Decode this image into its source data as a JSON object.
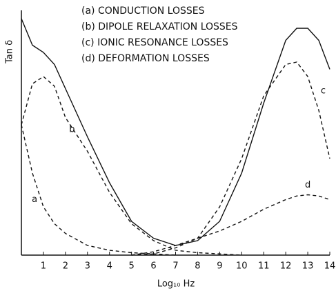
{
  "chart_data": {
    "type": "line",
    "x_label": "Log₁₀ Hz",
    "y_label": "Tan δ",
    "x": [
      0,
      0.5,
      1,
      1.5,
      2,
      3,
      4,
      5,
      6,
      7,
      8,
      9,
      10,
      11,
      12,
      12.5,
      13,
      13.5,
      14
    ],
    "series": [
      {
        "color": "#111111",
        "dash": false,
        "values": [
          98,
          87,
          84,
          79,
          69,
          49,
          30,
          14,
          7,
          4,
          6,
          14,
          34,
          63,
          89,
          94,
          94,
          89,
          77
        ]
      },
      {
        "name": "(a) CONDUCTION LOSSES",
        "label": "a",
        "color": "#111111",
        "dash": true,
        "values": [
          54,
          34,
          20,
          13,
          9,
          4,
          2,
          1,
          0.5,
          0,
          null,
          null,
          null,
          null,
          null,
          null,
          null,
          null,
          null
        ]
      },
      {
        "name": "(b) DIPOLE RELAXATION LOSSES",
        "label": "b",
        "color": "#111111",
        "dash": true,
        "values": [
          54,
          71,
          74,
          70,
          57,
          43,
          26,
          13,
          6,
          2,
          1,
          0.5,
          0,
          null,
          null,
          null,
          null,
          null,
          null
        ]
      },
      {
        "name": "(c) IONIC RESONANCE LOSSES",
        "label": "c",
        "color": "#111111",
        "dash": true,
        "values": [
          null,
          null,
          null,
          null,
          null,
          null,
          null,
          0,
          0.5,
          3,
          7,
          20,
          40,
          66,
          79,
          80,
          74,
          60,
          40
        ]
      },
      {
        "name": "(d) DEFORMATION LOSSES",
        "label": "d",
        "color": "#111111",
        "dash": true,
        "values": [
          null,
          null,
          null,
          null,
          null,
          null,
          null,
          0,
          1.4,
          4,
          7,
          10,
          14,
          19,
          23,
          24.5,
          25,
          24.5,
          23
        ]
      }
    ],
    "xlim": [
      0,
      14
    ],
    "ylim": [
      0,
      100
    ],
    "xticks": [
      1,
      2,
      3,
      4,
      5,
      6,
      7,
      8,
      9,
      10,
      11,
      12,
      13,
      14
    ]
  }
}
